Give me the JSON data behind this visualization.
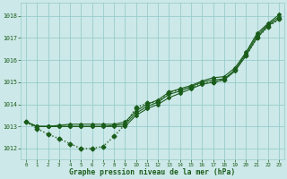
{
  "bg_color": "#cce8e8",
  "grid_color": "#99cccc",
  "line_color": "#1a5c1a",
  "xlim": [
    -0.5,
    23.5
  ],
  "ylim": [
    1011.5,
    1018.6
  ],
  "yticks": [
    1012,
    1013,
    1014,
    1015,
    1016,
    1017,
    1018
  ],
  "xticks": [
    0,
    1,
    2,
    3,
    4,
    5,
    6,
    7,
    8,
    9,
    10,
    11,
    12,
    13,
    14,
    15,
    16,
    17,
    18,
    19,
    20,
    21,
    22,
    23
  ],
  "xlabel": "Graphe pression niveau de la mer (hPa)",
  "line_dotted": [
    1013.2,
    1012.9,
    1012.65,
    1012.45,
    1012.22,
    1012.0,
    1012.0,
    1012.1,
    1012.55,
    1013.1,
    1013.85,
    1014.05,
    1014.1,
    1014.55,
    1014.65,
    1014.75,
    1014.95,
    1015.0,
    1015.1,
    1015.55,
    1016.2,
    1017.0,
    1017.5,
    1017.85
  ],
  "line_solid1": [
    1013.2,
    1013.0,
    1013.0,
    1013.0,
    1013.0,
    1013.0,
    1013.0,
    1013.0,
    1013.0,
    1013.0,
    1013.5,
    1013.8,
    1014.0,
    1014.3,
    1014.5,
    1014.7,
    1014.9,
    1015.0,
    1015.1,
    1015.5,
    1016.2,
    1017.0,
    1017.55,
    1017.85
  ],
  "line_solid2": [
    1013.2,
    1013.0,
    1013.0,
    1013.0,
    1013.0,
    1013.0,
    1013.0,
    1013.0,
    1013.05,
    1013.1,
    1013.6,
    1013.9,
    1014.1,
    1014.45,
    1014.6,
    1014.8,
    1015.0,
    1015.1,
    1015.15,
    1015.55,
    1016.3,
    1017.1,
    1017.6,
    1017.95
  ],
  "line_solid3": [
    1013.2,
    1013.0,
    1013.0,
    1013.05,
    1013.1,
    1013.1,
    1013.1,
    1013.1,
    1013.1,
    1013.2,
    1013.7,
    1014.0,
    1014.2,
    1014.55,
    1014.7,
    1014.85,
    1015.05,
    1015.2,
    1015.25,
    1015.65,
    1016.35,
    1017.2,
    1017.65,
    1018.05
  ]
}
